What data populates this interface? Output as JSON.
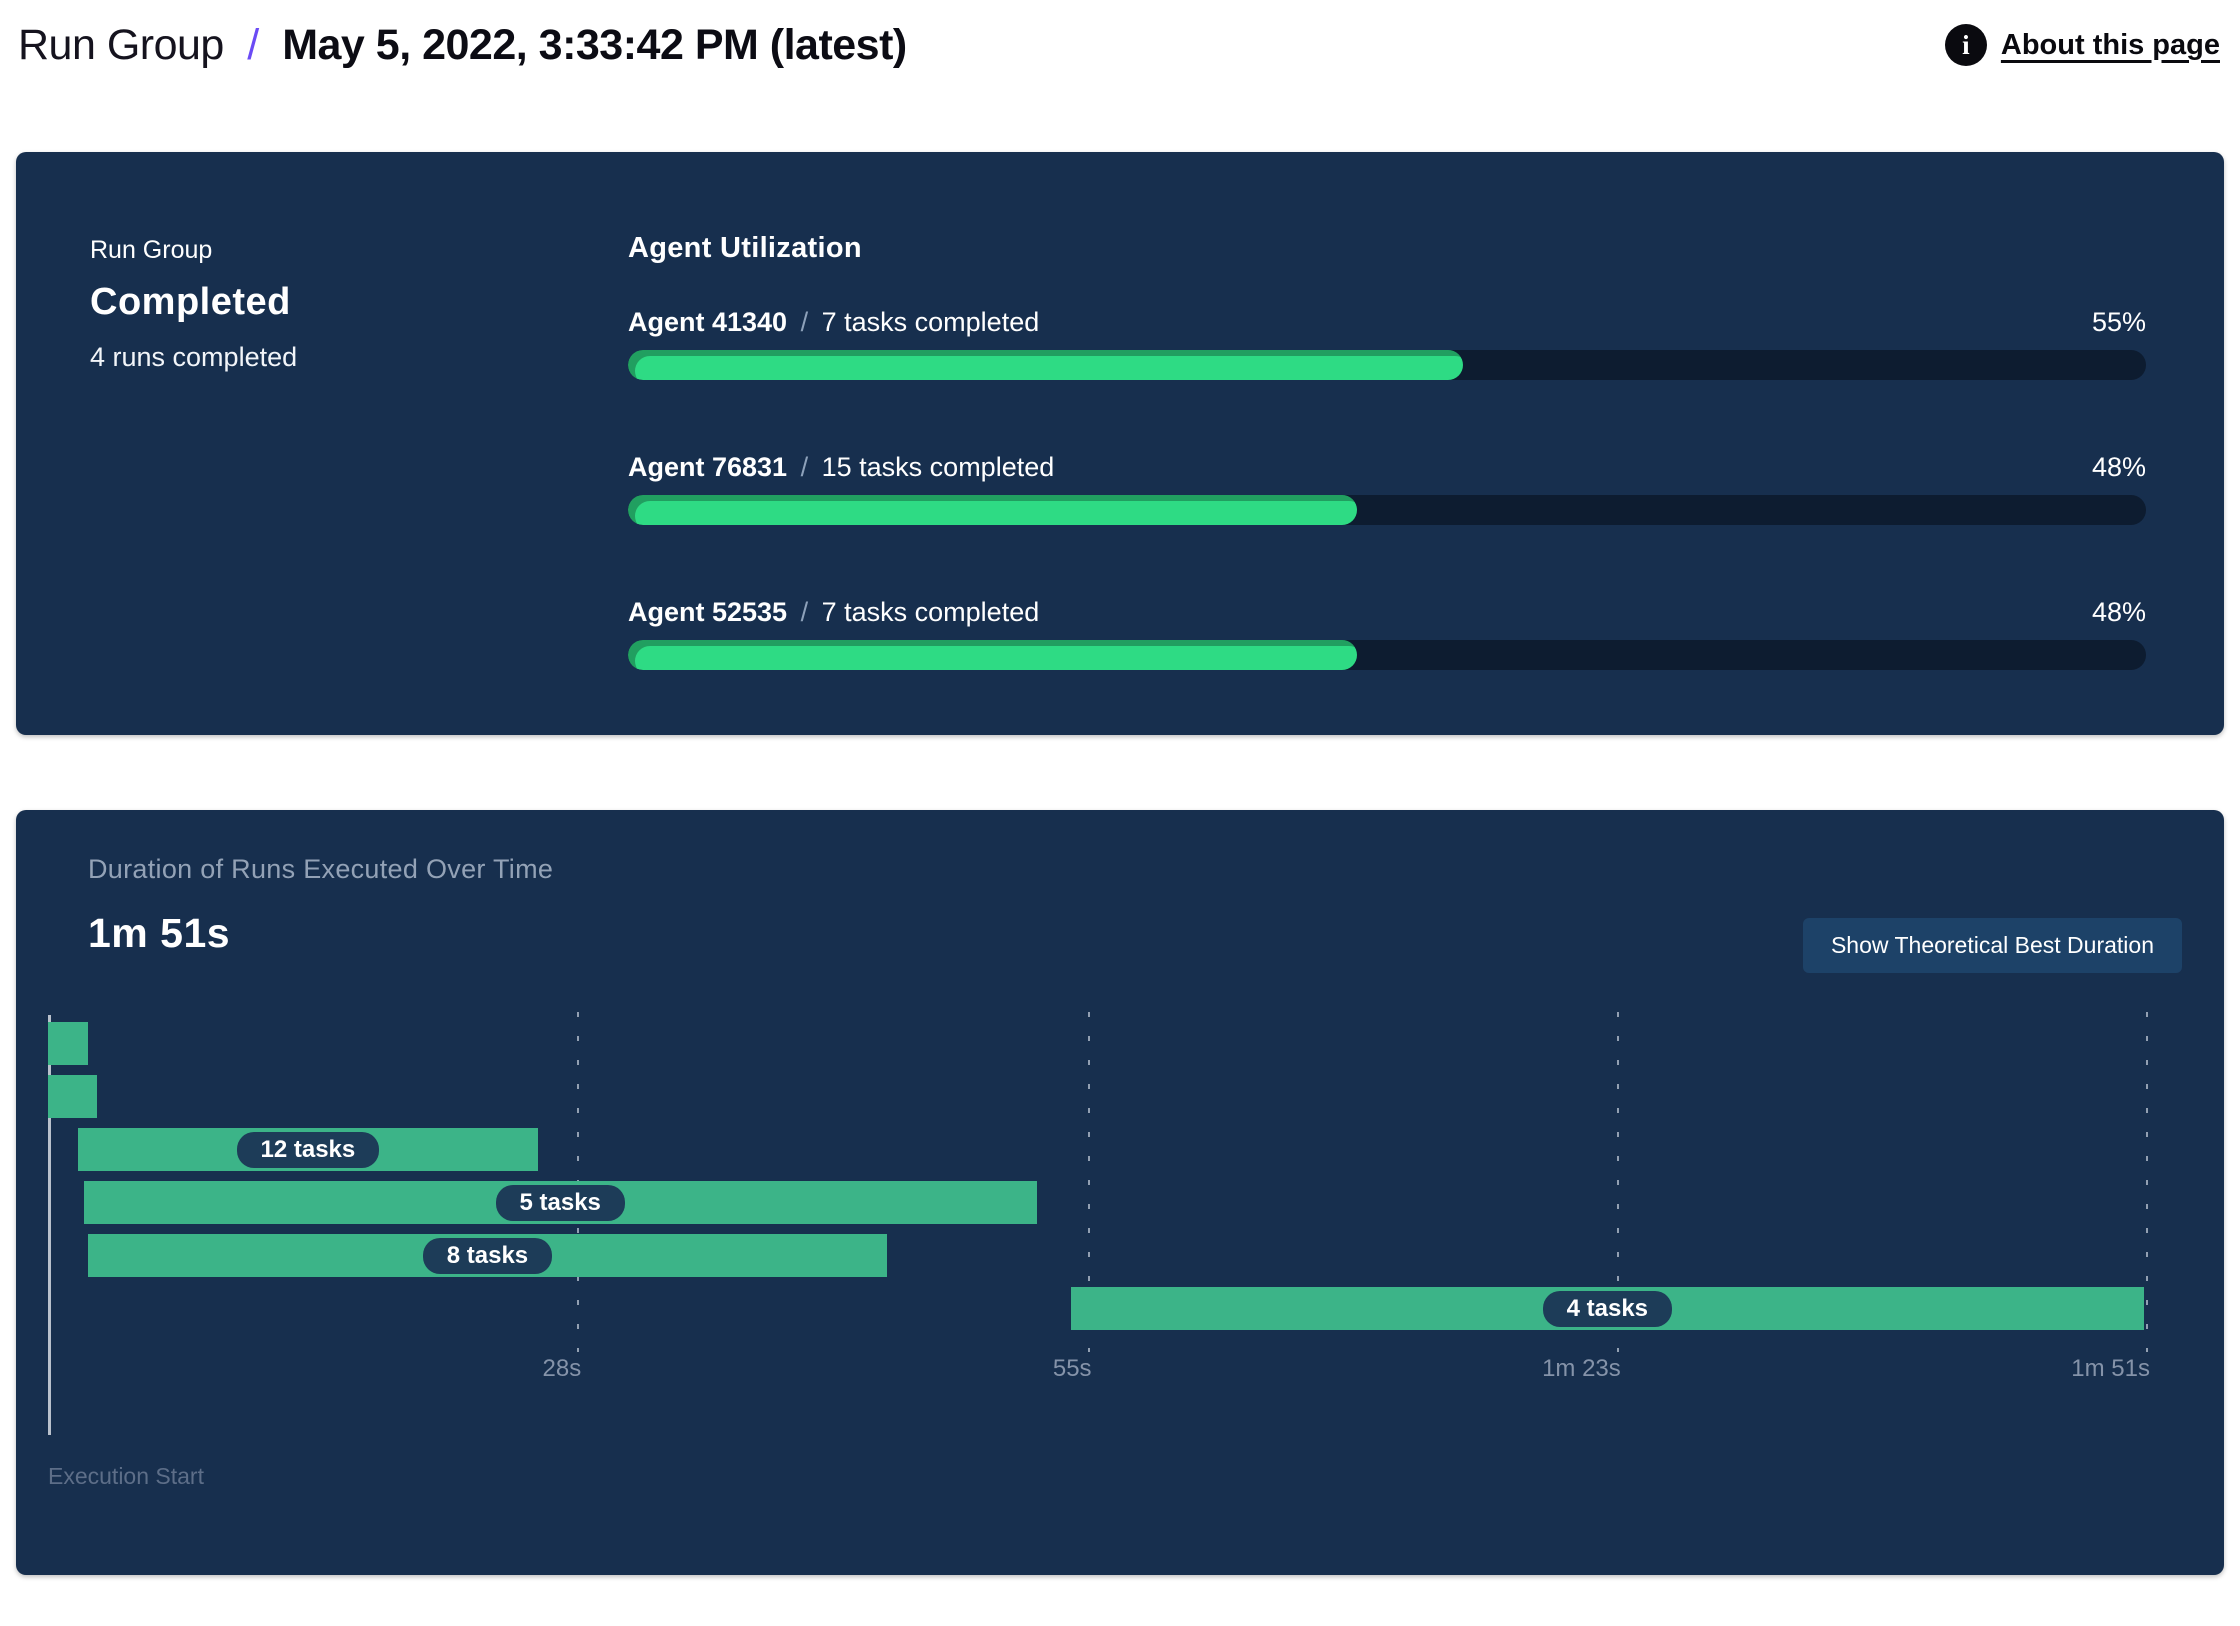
{
  "header": {
    "title_root": "Run Group",
    "title_separator": "/",
    "title_current": "May 5, 2022, 3:33:42 PM (latest)",
    "info_icon": "i",
    "about_link": "About this page"
  },
  "run_group_panel": {
    "label": "Run Group",
    "status": "Completed",
    "summary": "4 runs completed"
  },
  "agent_utilization": {
    "title": "Agent Utilization",
    "separator": "/",
    "agents": [
      {
        "name": "Agent 41340",
        "tasks": "7 tasks completed",
        "percent_label": "55%",
        "percent": 55
      },
      {
        "name": "Agent 76831",
        "tasks": "15 tasks completed",
        "percent_label": "48%",
        "percent": 48
      },
      {
        "name": "Agent 52535",
        "tasks": "7 tasks completed",
        "percent_label": "48%",
        "percent": 48
      }
    ]
  },
  "duration_panel": {
    "title": "Duration of Runs Executed Over Time",
    "total_duration": "1m 51s",
    "button_label": "Show Theoretical Best Duration",
    "execution_start_label": "Execution Start"
  },
  "chart_data": {
    "type": "gantt",
    "title": "Duration of Runs Executed Over Time",
    "total_duration_label": "1m 51s",
    "axis_max_seconds": 111,
    "x_ticks": [
      {
        "seconds": 28,
        "label": "28s"
      },
      {
        "seconds": 55,
        "label": "55s"
      },
      {
        "seconds": 83,
        "label": "1m 23s"
      },
      {
        "seconds": 111,
        "label": "1m 51s"
      }
    ],
    "runs": [
      {
        "row": 0,
        "start_s": 0,
        "end_s": 2.1,
        "tasks": null,
        "label": ""
      },
      {
        "row": 1,
        "start_s": 0,
        "end_s": 2.6,
        "tasks": null,
        "label": ""
      },
      {
        "row": 2,
        "start_s": 1.6,
        "end_s": 25.9,
        "tasks": 12,
        "label": "12 tasks"
      },
      {
        "row": 3,
        "start_s": 1.9,
        "end_s": 52.3,
        "tasks": 5,
        "label": "5 tasks"
      },
      {
        "row": 4,
        "start_s": 2.1,
        "end_s": 44.4,
        "tasks": 8,
        "label": "8 tasks"
      },
      {
        "row": 5,
        "start_s": 54.1,
        "end_s": 110.9,
        "tasks": 4,
        "label": "4 tasks"
      }
    ],
    "colors": {
      "panel_background": "#172f4e",
      "bar_green": "#3cb488",
      "progress_green": "#2edb84",
      "progress_track": "#0d1c30",
      "pill_background": "#1d3c58",
      "accent_purple": "#6b4bf5"
    },
    "legend": "none",
    "grid": "dashed-vertical"
  }
}
